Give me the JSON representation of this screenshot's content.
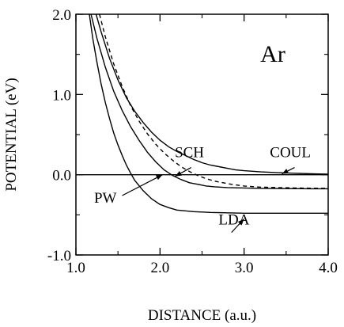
{
  "chart_data": {
    "type": "line",
    "title": "",
    "xlabel": "DISTANCE (a.u.)",
    "ylabel": "POTENTIAL (eV)",
    "xlim": [
      1.0,
      4.0
    ],
    "ylim": [
      -1.0,
      2.0
    ],
    "xticks": [
      1.0,
      2.0,
      3.0,
      4.0
    ],
    "xtick_labels": [
      "1.0",
      "2.0",
      "3.0",
      "4.0"
    ],
    "yticks": [
      -1.0,
      0.0,
      1.0,
      2.0
    ],
    "ytick_labels": [
      "-1.0",
      "0.0",
      "1.0",
      "2.0"
    ],
    "grid": false,
    "species_label": "Ar",
    "zero_line": 0.0,
    "series": [
      {
        "name": "COUL",
        "style": "solid",
        "x": [
          1.24,
          1.3,
          1.4,
          1.5,
          1.6,
          1.7,
          1.8,
          1.9,
          2.0,
          2.1,
          2.2,
          2.3,
          2.4,
          2.5,
          2.6,
          2.7,
          2.8,
          2.9,
          3.0,
          3.2,
          3.4,
          3.6,
          3.8,
          4.0
        ],
        "y": [
          2.0,
          1.78,
          1.45,
          1.18,
          0.96,
          0.79,
          0.65,
          0.53,
          0.43,
          0.35,
          0.29,
          0.24,
          0.19,
          0.15,
          0.12,
          0.1,
          0.08,
          0.06,
          0.05,
          0.035,
          0.025,
          0.018,
          0.012,
          0.008
        ]
      },
      {
        "name": "",
        "style": "dashed",
        "x": [
          1.28,
          1.35,
          1.45,
          1.55,
          1.65,
          1.75,
          1.85,
          1.95,
          2.05,
          2.15,
          2.25,
          2.35,
          2.45,
          2.55,
          2.65,
          2.75,
          2.85,
          3.0,
          3.2,
          3.4,
          3.6,
          3.8,
          4.0
        ],
        "y": [
          2.0,
          1.72,
          1.38,
          1.1,
          0.86,
          0.67,
          0.51,
          0.38,
          0.27,
          0.18,
          0.1,
          0.04,
          -0.01,
          -0.05,
          -0.08,
          -0.1,
          -0.12,
          -0.14,
          -0.155,
          -0.16,
          -0.165,
          -0.168,
          -0.17
        ]
      },
      {
        "name": "SCH",
        "style": "solid",
        "x": [
          1.18,
          1.25,
          1.35,
          1.45,
          1.55,
          1.65,
          1.75,
          1.85,
          1.95,
          2.05,
          2.15,
          2.25,
          2.35,
          2.45,
          2.55,
          2.65,
          2.8,
          3.0,
          3.2,
          3.4,
          3.6,
          3.8,
          4.0
        ],
        "y": [
          2.0,
          1.7,
          1.34,
          1.04,
          0.8,
          0.6,
          0.43,
          0.28,
          0.16,
          0.06,
          -0.01,
          -0.06,
          -0.1,
          -0.12,
          -0.14,
          -0.15,
          -0.16,
          -0.165,
          -0.17,
          -0.172,
          -0.174,
          -0.175,
          -0.175
        ]
      },
      {
        "name": "LDA",
        "style": "solid",
        "x": [
          1.16,
          1.2,
          1.25,
          1.3,
          1.35,
          1.4,
          1.45,
          1.5,
          1.55,
          1.6,
          1.65,
          1.7,
          1.8,
          1.9,
          2.0,
          2.1,
          2.2,
          2.4,
          2.6,
          2.8,
          3.0,
          3.5,
          4.0
        ],
        "y": [
          2.0,
          1.7,
          1.4,
          1.13,
          0.9,
          0.7,
          0.52,
          0.37,
          0.24,
          0.12,
          0.02,
          -0.07,
          -0.2,
          -0.3,
          -0.37,
          -0.41,
          -0.44,
          -0.46,
          -0.47,
          -0.475,
          -0.48,
          -0.48,
          -0.48
        ]
      }
    ],
    "annotations": [
      {
        "text": "SCH",
        "x": 2.35,
        "y": 0.22
      },
      {
        "text": "COUL",
        "x": 3.55,
        "y": 0.22
      },
      {
        "text": "PW",
        "x": 1.35,
        "y": -0.35
      },
      {
        "text": "LDA",
        "x": 2.88,
        "y": -0.62
      }
    ],
    "arrows": [
      {
        "label": "SCH",
        "from": [
          2.37,
          0.09
        ],
        "to": [
          2.18,
          -0.02
        ]
      },
      {
        "label": "COUL",
        "from": [
          3.6,
          0.09
        ],
        "to": [
          3.45,
          0.01
        ]
      },
      {
        "label": "PW",
        "from": [
          1.55,
          -0.26
        ],
        "to": [
          2.03,
          0.0
        ]
      },
      {
        "label": "LDA",
        "from": [
          2.85,
          -0.72
        ],
        "to": [
          3.0,
          -0.55
        ]
      }
    ]
  }
}
